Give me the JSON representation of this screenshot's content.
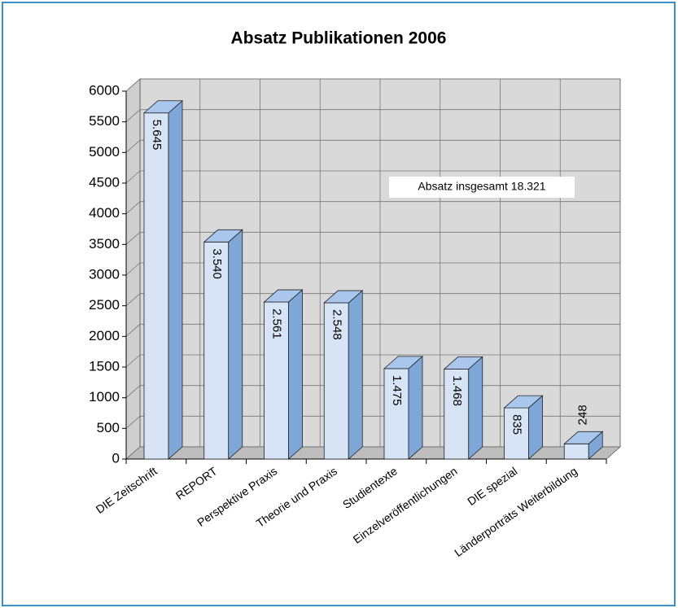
{
  "chart_data": {
    "type": "bar",
    "title": "Absatz Publikationen 2006",
    "categories": [
      "DIE Zeitschrift",
      "REPORT",
      "Perspektive Praxis",
      "Theorie und Praxis",
      "Studientexte",
      "Einzelveröffentlichungen",
      "DIE spezial",
      "Länderporträts Weiterbildung"
    ],
    "values": [
      5645,
      3540,
      2561,
      2548,
      1475,
      1468,
      835,
      248
    ],
    "value_labels": [
      "5.645",
      "3.540",
      "2.561",
      "2.548",
      "1.475",
      "1.468",
      "835",
      "248"
    ],
    "color": "#d6e4f5",
    "ylim": [
      0,
      6000
    ],
    "yticks": [
      0,
      500,
      1000,
      1500,
      2000,
      2500,
      3000,
      3500,
      4000,
      4500,
      5000,
      5500,
      6000
    ],
    "grid": true,
    "annotation": "Absatz insgesamt 18.321"
  }
}
